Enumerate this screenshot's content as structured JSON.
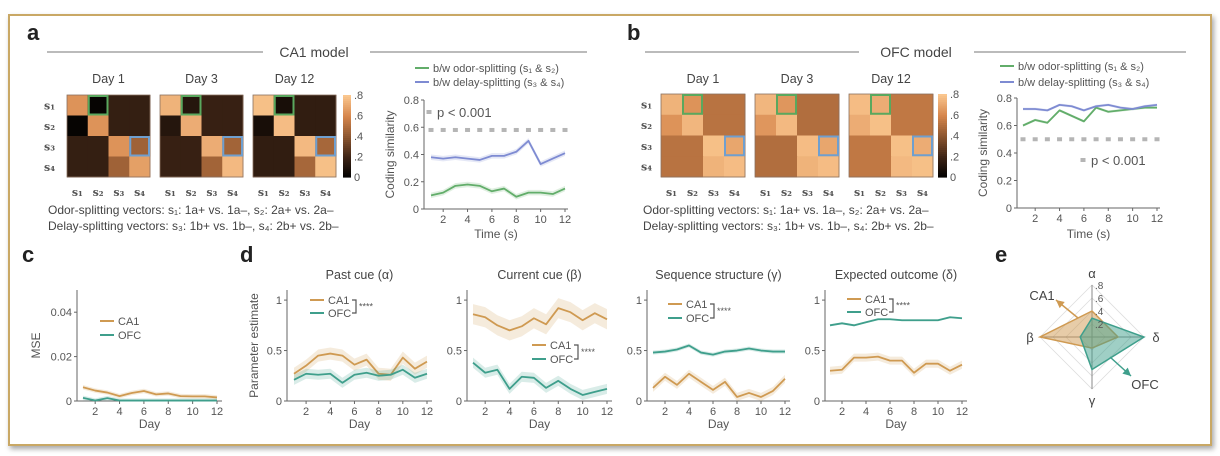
{
  "panel_labels": {
    "a": "a",
    "b": "b",
    "c": "c",
    "d": "d",
    "e": "e"
  },
  "notes": {
    "a": {
      "odor": "Odor-splitting vectors:  s₁: 1a+ vs. 1a–, s₂: 2a+ vs. 2a–",
      "delay": "Delay-splitting vectors: s₃: 1b+ vs. 1b–, s₄: 2b+ vs. 2b–"
    },
    "b": {
      "odor": "Odor-splitting vectors:  s₁: 1a+ vs. 1a–, s₂: 2a+ vs. 2a–",
      "delay": "Delay-splitting vectors: s₃: 1b+ vs. 1b–, s₄: 2b+ vs. 2b–"
    }
  },
  "colors": {
    "CA1": "#cf9a52",
    "OFC": "#3f9f8c",
    "odor": "#62ad6a",
    "delay": "#7e8bd2",
    "threshold": "#b5b5b5",
    "frame": "#c9a865"
  },
  "chart_data": [
    {
      "id": "a_heatmap",
      "type": "heatmap",
      "title": "CA1 model",
      "labels": [
        "s₁",
        "s₂",
        "s₃",
        "s₄"
      ],
      "panels": [
        {
          "title": "Day 1",
          "matrix": [
            [
              0.64,
              0.02,
              0.17,
              0.17
            ],
            [
              0.02,
              0.64,
              0.17,
              0.17
            ],
            [
              0.17,
              0.17,
              0.64,
              0.45
            ],
            [
              0.17,
              0.17,
              0.45,
              0.68
            ]
          ]
        },
        {
          "title": "Day 3",
          "matrix": [
            [
              0.74,
              0.12,
              0.18,
              0.18
            ],
            [
              0.12,
              0.72,
              0.18,
              0.18
            ],
            [
              0.18,
              0.18,
              0.72,
              0.46
            ],
            [
              0.18,
              0.18,
              0.46,
              0.76
            ]
          ]
        },
        {
          "title": "Day 12",
          "matrix": [
            [
              0.78,
              0.08,
              0.16,
              0.16
            ],
            [
              0.08,
              0.77,
              0.16,
              0.16
            ],
            [
              0.16,
              0.16,
              0.76,
              0.47
            ],
            [
              0.16,
              0.16,
              0.47,
              0.78
            ]
          ]
        }
      ],
      "highlights": [
        {
          "row": 0,
          "col": 1,
          "color": "#5aa85e"
        },
        {
          "row": 2,
          "col": 3,
          "color": "#6f9fcf"
        }
      ],
      "colorbar": {
        "range": [
          0,
          0.8
        ],
        "ticks": [
          0.8,
          0.6,
          0.4,
          0.2,
          0
        ],
        "tick_labels": [
          ".8",
          ".6",
          ".4",
          ".2",
          "0"
        ]
      }
    },
    {
      "id": "a_line",
      "type": "line",
      "x": [
        1,
        2,
        3,
        4,
        5,
        6,
        7,
        8,
        9,
        10,
        11,
        12
      ],
      "ylim": [
        0,
        0.8
      ],
      "yticks": [
        0,
        0.2,
        0.4,
        0.6,
        0.8
      ],
      "ytick_labels": [
        "0",
        "0.2",
        "0.4",
        "0.6",
        "0.8"
      ],
      "xticks": [
        2,
        4,
        6,
        8,
        10,
        12
      ],
      "xtick_labels": [
        "2",
        "4",
        "6",
        "8",
        "10",
        "12"
      ],
      "xlabel": "Time (s)",
      "ylabel": "Coding similarity",
      "series": [
        {
          "name": "b/w odor-splitting (s₁ & s₂)",
          "color": "#62ad6a",
          "band": 0.02,
          "values": [
            0.1,
            0.12,
            0.17,
            0.18,
            0.17,
            0.13,
            0.15,
            0.09,
            0.12,
            0.12,
            0.11,
            0.15
          ]
        },
        {
          "name": "b/w delay-splitting (s₃ & s₄)",
          "color": "#7e8bd2",
          "band": 0.02,
          "values": [
            0.38,
            0.37,
            0.38,
            0.37,
            0.36,
            0.39,
            0.39,
            0.42,
            0.5,
            0.33,
            0.37,
            0.41
          ]
        }
      ],
      "threshold": {
        "value": 0.58,
        "label": "p < 0.001"
      }
    },
    {
      "id": "b_heatmap",
      "type": "heatmap",
      "title": "OFC model",
      "labels": [
        "s₁",
        "s₂",
        "s₃",
        "s₄"
      ],
      "panels": [
        {
          "title": "Day 1",
          "matrix": [
            [
              0.74,
              0.64,
              0.52,
              0.52
            ],
            [
              0.64,
              0.75,
              0.52,
              0.52
            ],
            [
              0.52,
              0.52,
              0.78,
              0.7
            ],
            [
              0.52,
              0.52,
              0.74,
              0.77
            ]
          ]
        },
        {
          "title": "Day 3",
          "matrix": [
            [
              0.75,
              0.65,
              0.5,
              0.5
            ],
            [
              0.65,
              0.76,
              0.5,
              0.5
            ],
            [
              0.5,
              0.5,
              0.77,
              0.7
            ],
            [
              0.5,
              0.5,
              0.74,
              0.77
            ]
          ]
        },
        {
          "title": "Day 12",
          "matrix": [
            [
              0.77,
              0.72,
              0.54,
              0.54
            ],
            [
              0.72,
              0.78,
              0.54,
              0.54
            ],
            [
              0.54,
              0.54,
              0.78,
              0.72
            ],
            [
              0.54,
              0.54,
              0.76,
              0.78
            ]
          ]
        }
      ],
      "highlights": [
        {
          "row": 0,
          "col": 1,
          "color": "#5aa85e"
        },
        {
          "row": 2,
          "col": 3,
          "color": "#6f9fcf"
        }
      ],
      "colorbar": {
        "range": [
          0,
          0.8
        ],
        "ticks": [
          0.8,
          0.6,
          0.4,
          0.2,
          0
        ],
        "tick_labels": [
          ".8",
          ".6",
          ".4",
          ".2",
          "0"
        ]
      }
    },
    {
      "id": "b_line",
      "type": "line",
      "x": [
        1,
        2,
        3,
        4,
        5,
        6,
        7,
        8,
        9,
        10,
        11,
        12
      ],
      "ylim": [
        0,
        0.8
      ],
      "yticks": [
        0,
        0.2,
        0.4,
        0.6,
        0.8
      ],
      "ytick_labels": [
        "0",
        "0.2",
        "0.4",
        "0.6",
        "0.8"
      ],
      "xticks": [
        2,
        4,
        6,
        8,
        10,
        12
      ],
      "xtick_labels": [
        "2",
        "4",
        "6",
        "8",
        "10",
        "12"
      ],
      "xlabel": "Time (s)",
      "ylabel": "Coding similarity",
      "series": [
        {
          "name": "b/w odor-splitting (s₁ & s₂)",
          "color": "#62ad6a",
          "band": 0.01,
          "values": [
            0.6,
            0.64,
            0.62,
            0.71,
            0.67,
            0.63,
            0.73,
            0.7,
            0.71,
            0.72,
            0.73,
            0.73
          ]
        },
        {
          "name": "b/w delay-splitting (s₃ & s₄)",
          "color": "#7e8bd2",
          "band": 0.01,
          "values": [
            0.72,
            0.72,
            0.71,
            0.75,
            0.74,
            0.71,
            0.74,
            0.75,
            0.73,
            0.72,
            0.74,
            0.75
          ]
        }
      ],
      "threshold": {
        "value": 0.5,
        "label": "p < 0.001"
      }
    },
    {
      "id": "c",
      "type": "line",
      "x": [
        1,
        2,
        3,
        4,
        5,
        6,
        7,
        8,
        9,
        10,
        11,
        12
      ],
      "ylim": [
        0,
        0.05
      ],
      "yticks": [
        0,
        0.02,
        0.04
      ],
      "ytick_labels": [
        "0",
        "0.02",
        "0.04"
      ],
      "xticks": [
        2,
        4,
        6,
        8,
        10,
        12
      ],
      "xtick_labels": [
        "2",
        "4",
        "6",
        "8",
        "10",
        "12"
      ],
      "xlabel": "Day",
      "ylabel": "MSE",
      "series": [
        {
          "name": "CA1",
          "color": "#cf9a52",
          "band": 0.001,
          "values": [
            0.0062,
            0.0047,
            0.0038,
            0.0022,
            0.0036,
            0.0045,
            0.003,
            0.0034,
            0.0022,
            0.0021,
            0.0021,
            0.0016
          ]
        },
        {
          "name": "OFC",
          "color": "#3f9f8c",
          "band": 0.001,
          "values": [
            0.0014,
            0.0002,
            0.0013,
            0.0002,
            0.0002,
            0.0002,
            0.0002,
            0.0002,
            0.0002,
            0.0002,
            0.0002,
            0.0002
          ]
        }
      ]
    },
    {
      "id": "d_alpha",
      "type": "line",
      "title": "Past cue (α)",
      "x": [
        1,
        2,
        3,
        4,
        5,
        6,
        7,
        8,
        9,
        10,
        11,
        12
      ],
      "ylim": [
        0,
        1.1
      ],
      "yticks": [
        0,
        0.5,
        1
      ],
      "ytick_labels": [
        "0",
        "0.5",
        "1"
      ],
      "xticks": [
        2,
        4,
        6,
        8,
        10,
        12
      ],
      "xtick_labels": [
        "2",
        "4",
        "6",
        "8",
        "10",
        "12"
      ],
      "xlabel": "Day",
      "ylabel": "Parameter estimate",
      "significance": "****",
      "series": [
        {
          "name": "CA1",
          "color": "#cf9a52",
          "band": 0.06,
          "values": [
            0.27,
            0.35,
            0.45,
            0.47,
            0.45,
            0.36,
            0.41,
            0.27,
            0.26,
            0.43,
            0.32,
            0.39
          ]
        },
        {
          "name": "OFC",
          "color": "#3f9f8c",
          "band": 0.05,
          "values": [
            0.21,
            0.27,
            0.26,
            0.27,
            0.18,
            0.26,
            0.28,
            0.25,
            0.26,
            0.31,
            0.23,
            0.27
          ]
        }
      ]
    },
    {
      "id": "d_beta",
      "type": "line",
      "title": "Current cue (β)",
      "x": [
        1,
        2,
        3,
        4,
        5,
        6,
        7,
        8,
        9,
        10,
        11,
        12
      ],
      "ylim": [
        0,
        1.1
      ],
      "yticks": [
        0,
        0.5,
        1
      ],
      "ytick_labels": [
        "0",
        "0.5",
        "1"
      ],
      "xticks": [
        2,
        4,
        6,
        8,
        10,
        12
      ],
      "xtick_labels": [
        "2",
        "4",
        "6",
        "8",
        "10",
        "12"
      ],
      "xlabel": "Day",
      "significance": "****",
      "series": [
        {
          "name": "CA1",
          "color": "#cf9a52",
          "band": 0.1,
          "values": [
            0.86,
            0.83,
            0.75,
            0.7,
            0.74,
            0.82,
            0.76,
            0.92,
            0.88,
            0.8,
            0.87,
            0.81
          ]
        },
        {
          "name": "OFC",
          "color": "#3f9f8c",
          "band": 0.05,
          "values": [
            0.38,
            0.28,
            0.31,
            0.12,
            0.24,
            0.23,
            0.13,
            0.2,
            0.12,
            0.06,
            0.09,
            0.12
          ]
        }
      ]
    },
    {
      "id": "d_gamma",
      "type": "line",
      "title": "Sequence structure (γ)",
      "x": [
        1,
        2,
        3,
        4,
        5,
        6,
        7,
        8,
        9,
        10,
        11,
        12
      ],
      "ylim": [
        0,
        1.1
      ],
      "yticks": [
        0,
        0.5,
        1
      ],
      "ytick_labels": [
        "0",
        "0.5",
        "1"
      ],
      "xticks": [
        2,
        4,
        6,
        8,
        10,
        12
      ],
      "xtick_labels": [
        "2",
        "4",
        "6",
        "8",
        "10",
        "12"
      ],
      "xlabel": "Day",
      "significance": "****",
      "series": [
        {
          "name": "CA1",
          "color": "#cf9a52",
          "band": 0.04,
          "values": [
            0.13,
            0.24,
            0.16,
            0.27,
            0.19,
            0.11,
            0.19,
            0.04,
            0.08,
            0.04,
            0.1,
            0.22
          ]
        },
        {
          "name": "OFC",
          "color": "#3f9f8c",
          "band": 0.02,
          "values": [
            0.48,
            0.49,
            0.51,
            0.55,
            0.48,
            0.46,
            0.49,
            0.5,
            0.52,
            0.5,
            0.49,
            0.49
          ]
        }
      ]
    },
    {
      "id": "d_delta",
      "type": "line",
      "title": "Expected outcome (δ)",
      "x": [
        1,
        2,
        3,
        4,
        5,
        6,
        7,
        8,
        9,
        10,
        11,
        12
      ],
      "ylim": [
        0,
        1.1
      ],
      "yticks": [
        0,
        0.5,
        1
      ],
      "ytick_labels": [
        "0",
        "0.5",
        "1"
      ],
      "xticks": [
        2,
        4,
        6,
        8,
        10,
        12
      ],
      "xtick_labels": [
        "2",
        "4",
        "6",
        "8",
        "10",
        "12"
      ],
      "xlabel": "Day",
      "significance": "****",
      "series": [
        {
          "name": "CA1",
          "color": "#cf9a52",
          "band": 0.04,
          "values": [
            0.3,
            0.31,
            0.43,
            0.43,
            0.44,
            0.4,
            0.4,
            0.28,
            0.37,
            0.37,
            0.3,
            0.36
          ]
        },
        {
          "name": "OFC",
          "color": "#3f9f8c",
          "band": 0.01,
          "values": [
            0.75,
            0.77,
            0.75,
            0.78,
            0.81,
            0.81,
            0.8,
            0.8,
            0.8,
            0.8,
            0.83,
            0.82
          ]
        }
      ]
    },
    {
      "id": "e",
      "type": "radar",
      "axes": [
        "α",
        "β",
        "γ",
        "δ"
      ],
      "range": [
        0,
        0.8
      ],
      "ticks": [
        0.2,
        0.4,
        0.6,
        0.8
      ],
      "tick_labels": [
        ".2",
        ".4",
        ".6",
        ".8"
      ],
      "series": [
        {
          "name": "CA1",
          "color": "#cf9a52",
          "values": [
            0.4,
            0.8,
            0.17,
            0.4
          ]
        },
        {
          "name": "OFC",
          "color": "#3f9f8c",
          "values": [
            0.29,
            0.18,
            0.5,
            0.8
          ]
        }
      ]
    }
  ]
}
